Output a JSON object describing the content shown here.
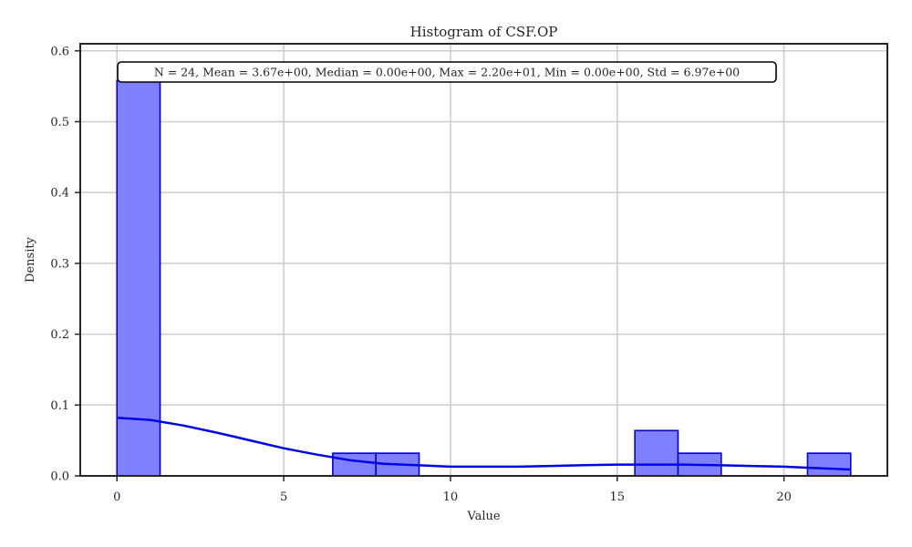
{
  "chart_data": {
    "type": "bar",
    "title": "Histogram of CSF.OP",
    "xlabel": "Value",
    "ylabel": "Density",
    "xlim": [
      -1.1,
      23.1
    ],
    "ylim": [
      0,
      0.61
    ],
    "xticks": [
      0,
      5,
      10,
      15,
      20
    ],
    "yticks": [
      0.0,
      0.1,
      0.2,
      0.3,
      0.4,
      0.5,
      0.6
    ],
    "xtick_labels": [
      "0",
      "5",
      "10",
      "15",
      "20"
    ],
    "ytick_labels": [
      "0.0",
      "0.1",
      "0.2",
      "0.3",
      "0.4",
      "0.5",
      "0.6"
    ],
    "grid": true,
    "bins": [
      {
        "x0": 0.0,
        "x1": 1.294,
        "density": 0.558
      },
      {
        "x0": 6.471,
        "x1": 7.765,
        "density": 0.032
      },
      {
        "x0": 7.765,
        "x1": 9.059,
        "density": 0.032
      },
      {
        "x0": 15.529,
        "x1": 16.824,
        "density": 0.064
      },
      {
        "x0": 16.824,
        "x1": 18.118,
        "density": 0.032
      },
      {
        "x0": 20.706,
        "x1": 22.0,
        "density": 0.032
      }
    ],
    "kde": {
      "x": [
        0,
        1,
        2,
        3,
        4,
        5,
        6,
        7,
        8,
        9,
        10,
        11,
        12,
        13,
        14,
        15,
        16,
        17,
        18,
        19,
        20,
        21,
        22
      ],
      "y": [
        0.082,
        0.079,
        0.071,
        0.061,
        0.05,
        0.039,
        0.03,
        0.022,
        0.017,
        0.015,
        0.013,
        0.013,
        0.013,
        0.014,
        0.015,
        0.016,
        0.016,
        0.016,
        0.015,
        0.014,
        0.013,
        0.011,
        0.009
      ]
    },
    "stats_annotation": "N = 24, Mean = 3.67e+00, Median = 0.00e+00, Max = 2.20e+01, Min = 0.00e+00, Std = 6.97e+00",
    "colors": {
      "bar_fill": "#8080ff",
      "bar_edge": "#0000cc",
      "kde_line": "#0000e6"
    }
  }
}
